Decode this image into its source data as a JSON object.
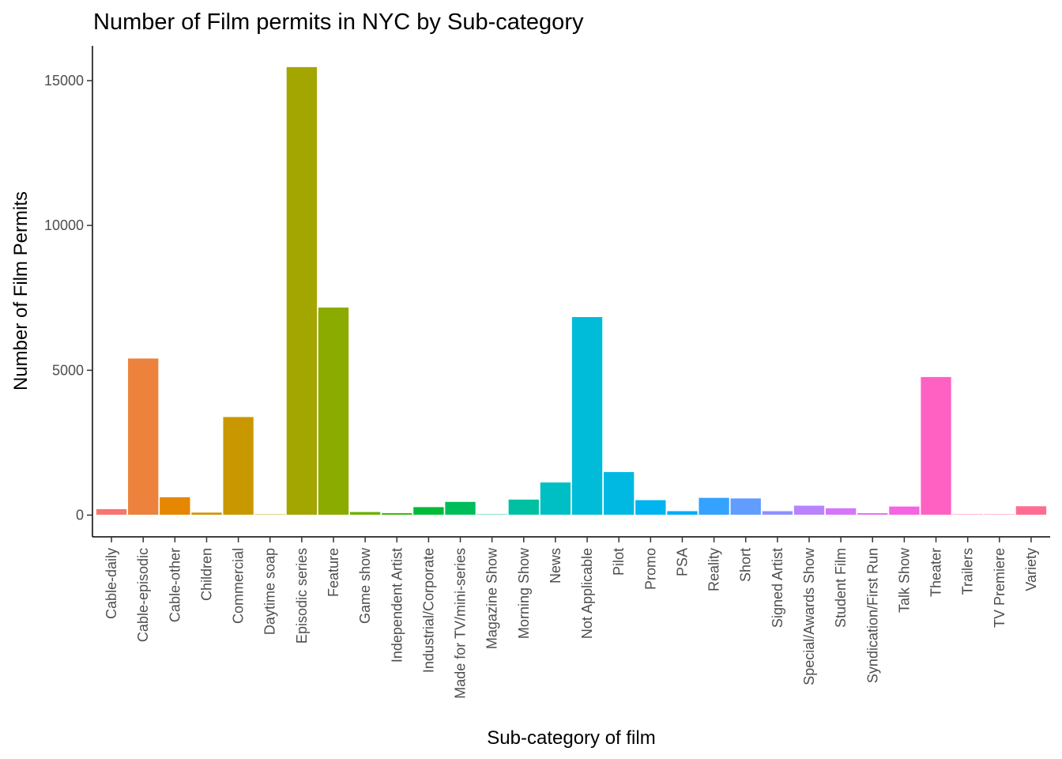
{
  "chart_data": {
    "type": "bar",
    "title": "Number of Film permits in NYC by Sub-category",
    "xlabel": "Sub-category of film",
    "ylabel": "Number of Film Permits",
    "ylim": [
      -750,
      16200
    ],
    "yticks": [
      0,
      5000,
      10000,
      15000
    ],
    "ytick_labels": [
      "0",
      "5000",
      "10000",
      "15000"
    ],
    "grid": false,
    "legend": "none",
    "categories": [
      "Cable-daily",
      "Cable-episodic",
      "Cable-other",
      "Children",
      "Commercial",
      "Daytime soap",
      "Episodic series",
      "Feature",
      "Game show",
      "Independent Artist",
      "Industrial/Corporate",
      "Made for TV/mini-series",
      "Magazine Show",
      "Morning Show",
      "News",
      "Not Applicable",
      "Pilot",
      "Promo",
      "PSA",
      "Reality",
      "Short",
      "Signed Artist",
      "Special/Awards Show",
      "Student Film",
      "Syndication/First Run",
      "Talk Show",
      "Theater",
      "Trailers",
      "TV Premiere",
      "Variety"
    ],
    "values": [
      220,
      5420,
      630,
      100,
      3400,
      40,
      15480,
      7180,
      120,
      80,
      290,
      470,
      40,
      550,
      1140,
      6850,
      1500,
      530,
      150,
      610,
      590,
      150,
      340,
      250,
      80,
      310,
      4780,
      40,
      40,
      320
    ],
    "colors": [
      "#F8766D",
      "#EC823C",
      "#E58700",
      "#D39200",
      "#C99800",
      "#B8A000",
      "#A3A500",
      "#8CAB00",
      "#6BB100",
      "#39B600",
      "#00BA38",
      "#00BD5C",
      "#00C08B",
      "#00C0A2",
      "#00BFC4",
      "#00BCD8",
      "#00B9E3",
      "#00B4EF",
      "#00ADFA",
      "#35A2FF",
      "#619CFF",
      "#8F91FF",
      "#B983FF",
      "#D575FE",
      "#E76BF3",
      "#F564E3",
      "#FF61C3",
      "#FF65AC",
      "#FF6A98",
      "#FF6C91"
    ]
  }
}
